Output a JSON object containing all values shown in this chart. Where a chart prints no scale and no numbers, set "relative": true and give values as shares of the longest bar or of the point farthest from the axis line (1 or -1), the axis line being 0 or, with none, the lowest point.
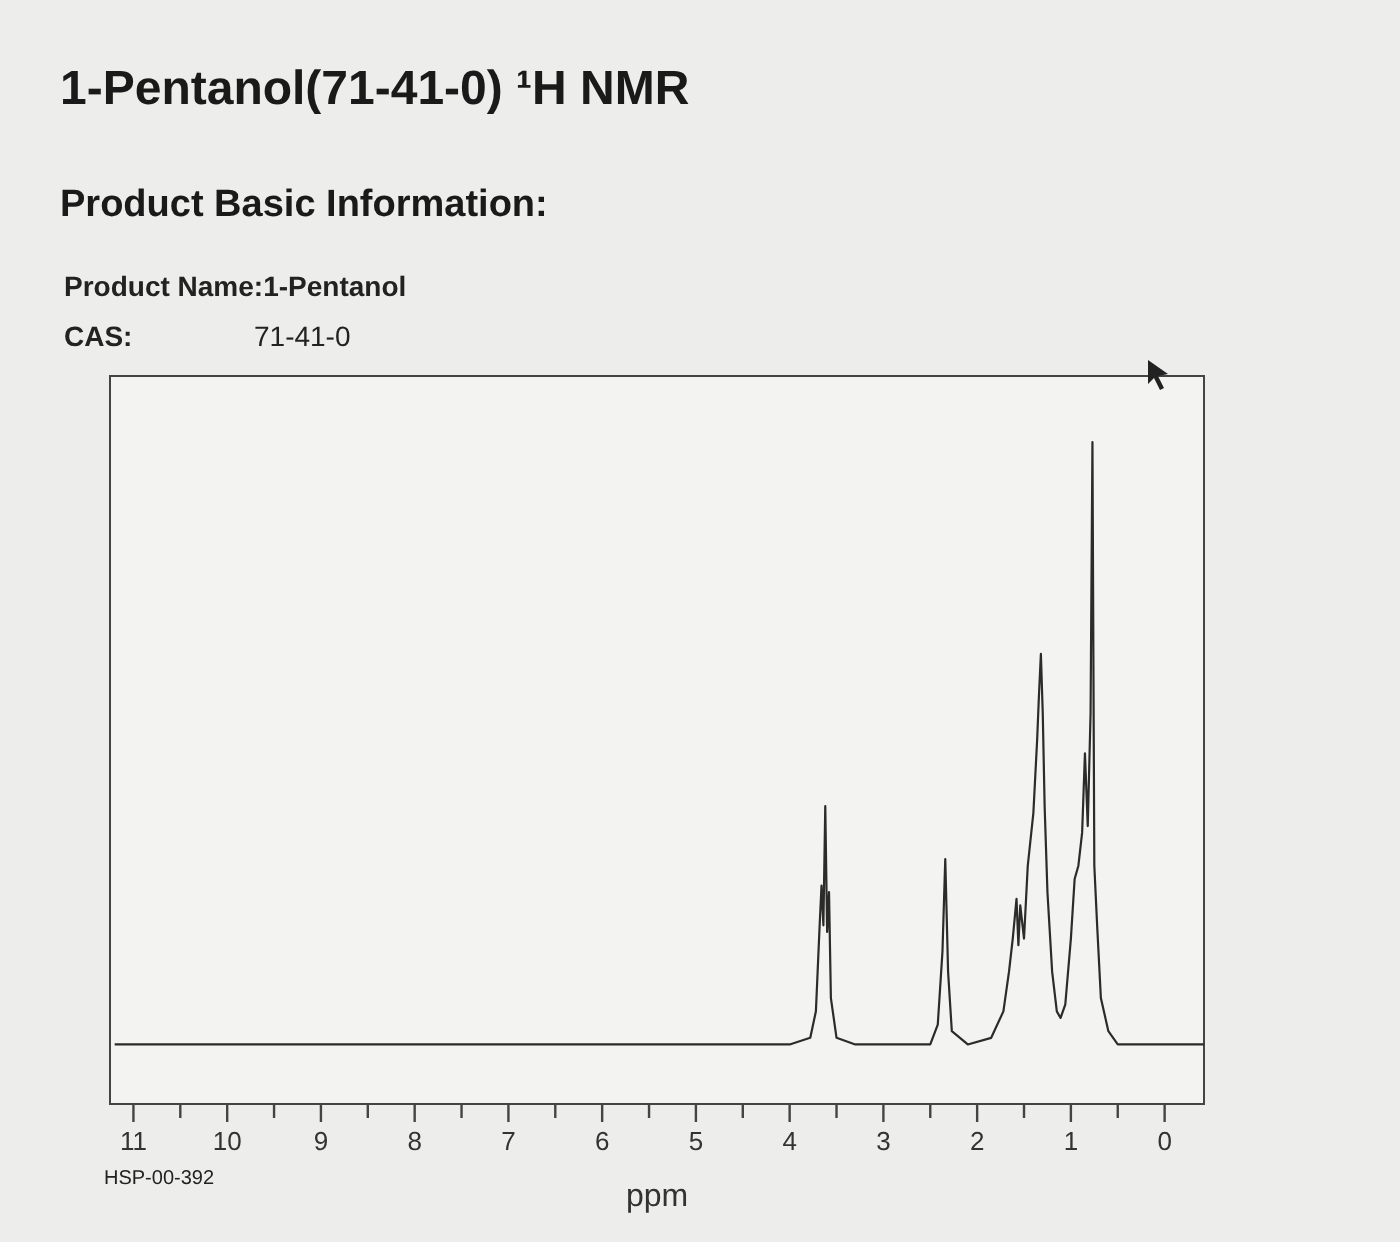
{
  "chart_data": {
    "type": "line",
    "title": "1-Pentanol(71-41-0) ¹H NMR",
    "subtitle": "Product Basic Information:",
    "xlabel": "ppm",
    "annotations": [
      "Product Name:1-Pentanol",
      "CAS:",
      "71-41-0",
      "HSP-00-392"
    ],
    "relative": true,
    "grid": false,
    "marker": "none",
    "line_style": "solid",
    "xlim": [
      11.25,
      -0.42
    ],
    "xticks": [
      11,
      {
        "value": 10.5,
        "label": null
      },
      10,
      {
        "value": 9.5,
        "label": null
      },
      9,
      {
        "value": 8.5,
        "label": null
      },
      8,
      {
        "value": 7.5,
        "label": null
      },
      7,
      {
        "value": 6.5,
        "label": null
      },
      6,
      {
        "value": 5.5,
        "label": null
      },
      5,
      {
        "value": 4.5,
        "label": null
      },
      4,
      {
        "value": 3.5,
        "label": null
      },
      3,
      {
        "value": 2.5,
        "label": null
      },
      2,
      {
        "value": 1.5,
        "label": null
      },
      1,
      {
        "value": 0.5,
        "label": null
      },
      0
    ],
    "series": [
      {
        "color": "#2b2b2b",
        "x": [
          11.2,
          4.0,
          3.78,
          3.72,
          3.68,
          3.66,
          3.64,
          3.62,
          3.6,
          3.58,
          3.56,
          3.5,
          3.3,
          2.5,
          2.42,
          2.37,
          2.34,
          2.31,
          2.27,
          2.1,
          1.85,
          1.72,
          1.66,
          1.62,
          1.58,
          1.56,
          1.54,
          1.5,
          1.46,
          1.4,
          1.36,
          1.34,
          1.32,
          1.3,
          1.28,
          1.25,
          1.2,
          1.15,
          1.11,
          1.06,
          1.0,
          0.96,
          0.92,
          0.88,
          0.85,
          0.82,
          0.79,
          0.77,
          0.75,
          0.72,
          0.68,
          0.6,
          0.5,
          -0.42
        ],
        "values": [
          0.09,
          0.09,
          0.1,
          0.14,
          0.27,
          0.33,
          0.27,
          0.45,
          0.26,
          0.32,
          0.16,
          0.1,
          0.09,
          0.09,
          0.12,
          0.23,
          0.37,
          0.2,
          0.11,
          0.09,
          0.1,
          0.14,
          0.2,
          0.25,
          0.31,
          0.24,
          0.3,
          0.25,
          0.36,
          0.44,
          0.55,
          0.62,
          0.68,
          0.59,
          0.45,
          0.32,
          0.2,
          0.14,
          0.13,
          0.15,
          0.25,
          0.34,
          0.36,
          0.41,
          0.53,
          0.42,
          0.59,
          1.0,
          0.36,
          0.27,
          0.16,
          0.11,
          0.09,
          0.09
        ]
      }
    ]
  }
}
